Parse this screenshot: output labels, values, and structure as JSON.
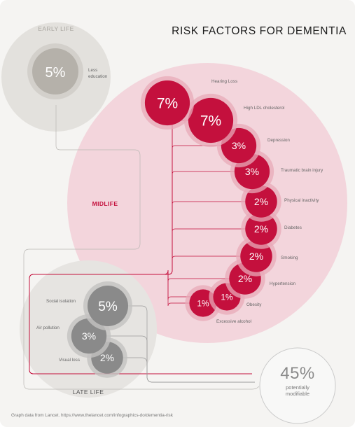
{
  "title": "RISK FACTORS FOR DEMENTIA",
  "footnote": "Graph data from Lancet. https://www.thelancet.com/infographics-do/dementia-risk",
  "colors": {
    "midlife": "#c4103d",
    "midlife_area": "#f3d5dc",
    "early_life": "#b5b1aa",
    "late_life": "#8a8a8a",
    "background": "#f5f4f2"
  },
  "groups": {
    "early_life": {
      "label": "EARLY LIFE",
      "factors": [
        {
          "name": "Less education",
          "label_lines": [
            "Less",
            "education"
          ],
          "value_label": "5%",
          "value": 5
        }
      ]
    },
    "midlife": {
      "label": "MIDLIFE",
      "factors": [
        {
          "name": "Hearing Loss",
          "value_label": "7%",
          "value": 7
        },
        {
          "name": "High LDL cholesterol",
          "value_label": "7%",
          "value": 7
        },
        {
          "name": "Depression",
          "value_label": "3%",
          "value": 3
        },
        {
          "name": "Traumatic brain injury",
          "value_label": "3%",
          "value": 3
        },
        {
          "name": "Physical inactivity",
          "value_label": "2%",
          "value": 2
        },
        {
          "name": "Diabetes",
          "value_label": "2%",
          "value": 2
        },
        {
          "name": "Smoking",
          "value_label": "2%",
          "value": 2
        },
        {
          "name": "Hypertension",
          "value_label": "2%",
          "value": 2
        },
        {
          "name": "Obesity",
          "value_label": "1%",
          "value": 1
        },
        {
          "name": "Excessive alcohol",
          "value_label": "1%",
          "value": 1
        }
      ]
    },
    "late_life": {
      "label": "LATE LIFE",
      "factors": [
        {
          "name": "Social isolation",
          "value_label": "5%",
          "value": 5
        },
        {
          "name": "Air pollution",
          "value_label": "3%",
          "value": 3
        },
        {
          "name": "Visual loss",
          "value_label": "2%",
          "value": 2
        }
      ]
    }
  },
  "total": {
    "value": "45%",
    "caption": "potentially modifiable"
  }
}
